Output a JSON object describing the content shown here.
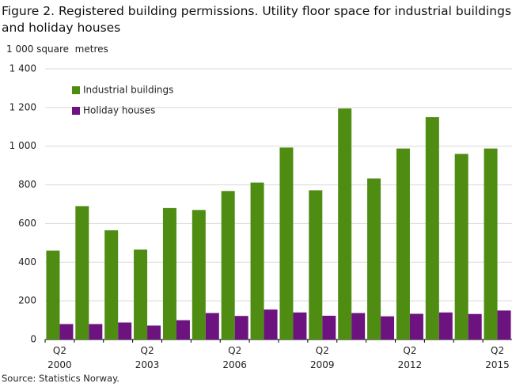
{
  "chart_data": {
    "type": "bar",
    "title": "Figure 2. Registered building permissions. Utility floor space for industrial buildings and holiday houses",
    "y_label": "1 000 square  metres",
    "source": "Source: Statistics Norway.",
    "categories": [
      "Q2\n2000",
      null,
      null,
      "Q2\n2003",
      null,
      null,
      "Q2\n2006",
      null,
      null,
      "Q2\n2009",
      null,
      null,
      "Q2\n2012",
      null,
      null,
      "Q2\n2015"
    ],
    "series": [
      {
        "name": "Industrial buildings",
        "color": "#4e8c12",
        "values": [
          460,
          690,
          565,
          465,
          680,
          670,
          768,
          812,
          993,
          772,
          1195,
          833,
          988,
          1150,
          960,
          988
        ]
      },
      {
        "name": "Holiday houses",
        "color": "#6c1380",
        "values": [
          80,
          80,
          88,
          72,
          100,
          137,
          122,
          155,
          140,
          123,
          137,
          120,
          133,
          140,
          132,
          150
        ]
      }
    ],
    "ylim": [
      0,
      1400
    ],
    "yticks": [
      0,
      200,
      400,
      600,
      800,
      {
        "value": 1000,
        "label": "1 000"
      },
      {
        "value": 1200,
        "label": "1 200"
      },
      {
        "value": 1400,
        "label": "1 400"
      }
    ],
    "grid": true,
    "legend": "top-left"
  }
}
